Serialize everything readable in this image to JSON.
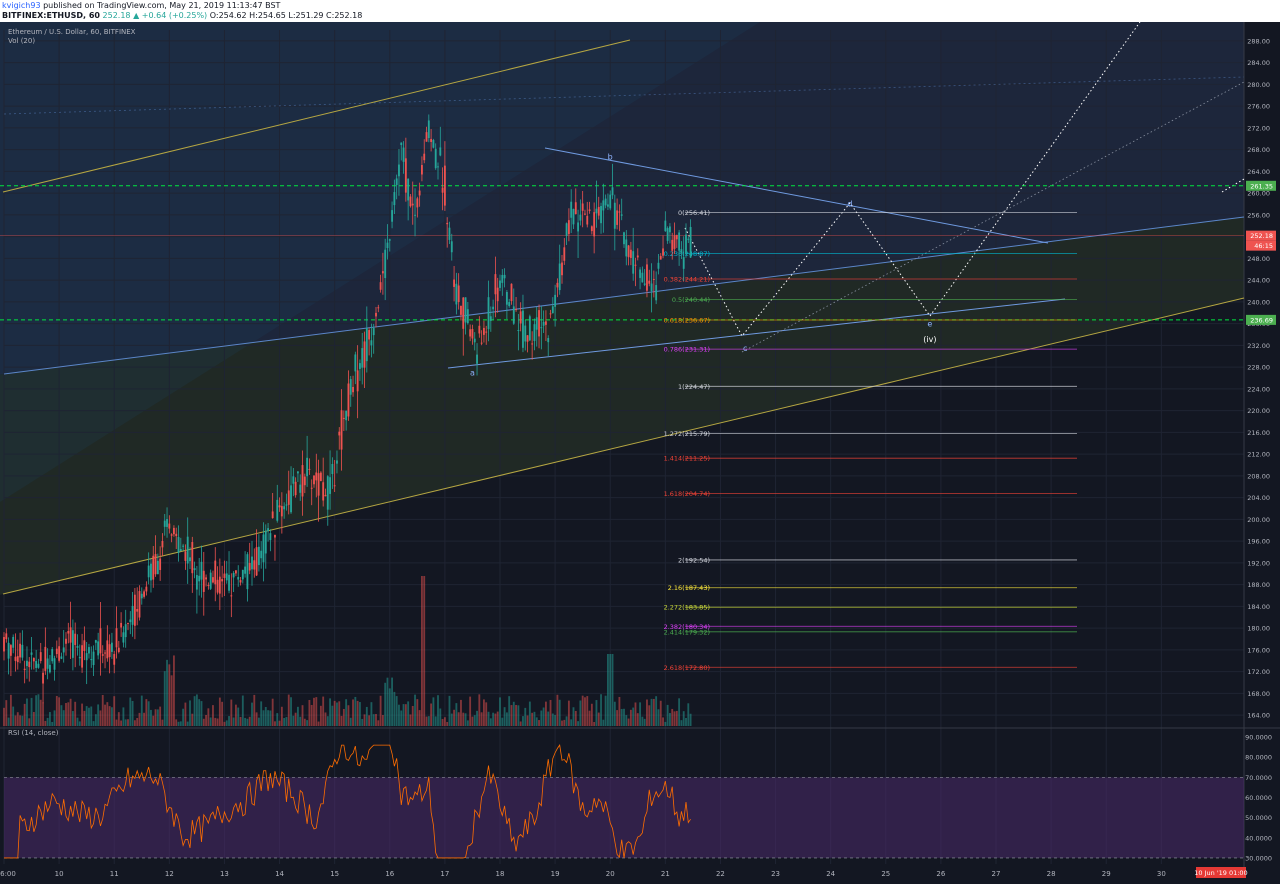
{
  "header": {
    "username": "kvigich93",
    "published_text": "published on TradingView.com, May 21, 2019 11:13:47 BST",
    "symbol": "BITFINEX:ETHUSD, 60",
    "close_change": "252.18 ▲ +0.64 (+0.25%)",
    "ohlc": "O:254.62 H:254.65 L:251.29 C:252.18"
  },
  "legend": {
    "title": "Ethereum / U.S. Dollar, 60, BITFINEX",
    "volume": "Vol (20)",
    "rsi": "RSI (14, close)"
  },
  "price_scale": [
    "288.00",
    "284.00",
    "280.00",
    "276.00",
    "272.00",
    "268.00",
    "264.00",
    "260.00",
    "256.00",
    "252.00",
    "248.00",
    "244.00",
    "240.00",
    "236.00",
    "232.00",
    "228.00",
    "224.00",
    "220.00",
    "216.00",
    "212.00",
    "208.00",
    "204.00",
    "200.00",
    "196.00",
    "192.00",
    "188.00",
    "184.00",
    "180.00",
    "176.00",
    "172.00",
    "168.00",
    "164.00"
  ],
  "price_tags": [
    {
      "price": 261.35,
      "text": "261.35",
      "bg": "#4caf50"
    },
    {
      "price": 252.18,
      "text": "252.18",
      "bg": "#ef5350"
    },
    {
      "price": 236.69,
      "text": "236.69",
      "bg": "#4caf50"
    }
  ],
  "countdown": "46:15",
  "rsi_scale": [
    "90.0000",
    "80.0000",
    "70.0000",
    "60.0000",
    "50.0000",
    "40.0000",
    "30.0000"
  ],
  "time_axis": [
    {
      "label": "6:00",
      "day": 9.0
    },
    {
      "label": "10",
      "day": 10
    },
    {
      "label": "11",
      "day": 11
    },
    {
      "label": "12",
      "day": 12
    },
    {
      "label": "13",
      "day": 13
    },
    {
      "label": "14",
      "day": 14
    },
    {
      "label": "15",
      "day": 15
    },
    {
      "label": "16",
      "day": 16
    },
    {
      "label": "17",
      "day": 17
    },
    {
      "label": "18",
      "day": 18
    },
    {
      "label": "19",
      "day": 19
    },
    {
      "label": "20",
      "day": 20
    },
    {
      "label": "21",
      "day": 21
    },
    {
      "label": "22",
      "day": 22
    },
    {
      "label": "23",
      "day": 23
    },
    {
      "label": "24",
      "day": 24
    },
    {
      "label": "25",
      "day": 25
    },
    {
      "label": "26",
      "day": 26
    },
    {
      "label": "27",
      "day": 27
    },
    {
      "label": "28",
      "day": 28
    },
    {
      "label": "29",
      "day": 29
    },
    {
      "label": "30",
      "day": 30
    }
  ],
  "date_badge": "10 Jun '19  01:00",
  "fib_levels": [
    {
      "label": "0(256.41)",
      "price": 256.41,
      "color": "#d1d4dc"
    },
    {
      "label": "0.236(248.87)",
      "price": 248.87,
      "color": "#00bcd4"
    },
    {
      "label": "0.382(244.21)",
      "price": 244.21,
      "color": "#f44336"
    },
    {
      "label": "0.5(240.44)",
      "price": 240.44,
      "color": "#4caf50"
    },
    {
      "label": "0.618(236.67)",
      "price": 236.67,
      "color": "#ff9800"
    },
    {
      "label": "0.786(231.31)",
      "price": 231.31,
      "color": "#e040fb"
    },
    {
      "label": "1(224.47)",
      "price": 224.47,
      "color": "#d1d4dc"
    },
    {
      "label": "1.272(215.79)",
      "price": 215.79,
      "color": "#d1d4dc"
    },
    {
      "label": "1.414(211.25)",
      "price": 211.25,
      "color": "#f44336"
    },
    {
      "label": "1.618(204.74)",
      "price": 204.74,
      "color": "#f44336"
    },
    {
      "label": "2(192.54)",
      "price": 192.54,
      "color": "#d1d4dc"
    },
    {
      "label": "2.16(187.43)",
      "price": 187.43,
      "color": "#ffeb3b"
    },
    {
      "label": "2.272(183.85)",
      "price": 183.85,
      "color": "#cddc39"
    },
    {
      "label": "2.382(180.34)",
      "price": 180.34,
      "color": "#e040fb"
    },
    {
      "label": "2.414(179.32)",
      "price": 179.32,
      "color": "#4caf50"
    },
    {
      "label": "2.618(172.80)",
      "price": 172.8,
      "color": "#f44336"
    }
  ],
  "wave_labels": [
    {
      "text": "a",
      "day": 17.5,
      "price": 226.5
    },
    {
      "text": "b",
      "day": 20.0,
      "price": 266.2
    },
    {
      "text": "c",
      "day": 22.45,
      "price": 231.0
    },
    {
      "text": "d",
      "day": 24.35,
      "price": 257.5
    },
    {
      "text": "e",
      "day": 25.8,
      "price": 235.5
    },
    {
      "text": "(iv)",
      "day": 25.8,
      "price": 232.6
    }
  ],
  "chart_data": {
    "type": "candlestick",
    "title": "Ethereum / U.S. Dollar, 60, BITFINEX",
    "y_range": [
      162,
      290
    ],
    "x_range_days": [
      9.0,
      31.5
    ],
    "anchors": [
      {
        "day": 9.0,
        "price": 178
      },
      {
        "day": 9.6,
        "price": 173
      },
      {
        "day": 10.2,
        "price": 177
      },
      {
        "day": 11.0,
        "price": 176
      },
      {
        "day": 11.4,
        "price": 184
      },
      {
        "day": 12.0,
        "price": 198
      },
      {
        "day": 12.6,
        "price": 190
      },
      {
        "day": 13.0,
        "price": 188
      },
      {
        "day": 13.6,
        "price": 192
      },
      {
        "day": 14.0,
        "price": 202
      },
      {
        "day": 14.5,
        "price": 208
      },
      {
        "day": 14.9,
        "price": 205
      },
      {
        "day": 15.3,
        "price": 225
      },
      {
        "day": 15.6,
        "price": 232
      },
      {
        "day": 15.9,
        "price": 245
      },
      {
        "day": 16.2,
        "price": 268
      },
      {
        "day": 16.45,
        "price": 255
      },
      {
        "day": 16.7,
        "price": 272
      },
      {
        "day": 17.0,
        "price": 262
      },
      {
        "day": 17.2,
        "price": 242
      },
      {
        "day": 17.6,
        "price": 231
      },
      {
        "day": 18.0,
        "price": 244
      },
      {
        "day": 18.5,
        "price": 234
      },
      {
        "day": 18.9,
        "price": 235
      },
      {
        "day": 19.3,
        "price": 256
      },
      {
        "day": 19.7,
        "price": 254
      },
      {
        "day": 20.0,
        "price": 260
      },
      {
        "day": 20.3,
        "price": 250
      },
      {
        "day": 20.8,
        "price": 242
      },
      {
        "day": 21.0,
        "price": 253
      },
      {
        "day": 21.3,
        "price": 250
      },
      {
        "day": 21.5,
        "price": 252.18
      }
    ],
    "rsi_range": [
      27,
      92
    ],
    "rsi_bands": [
      30,
      70
    ]
  }
}
